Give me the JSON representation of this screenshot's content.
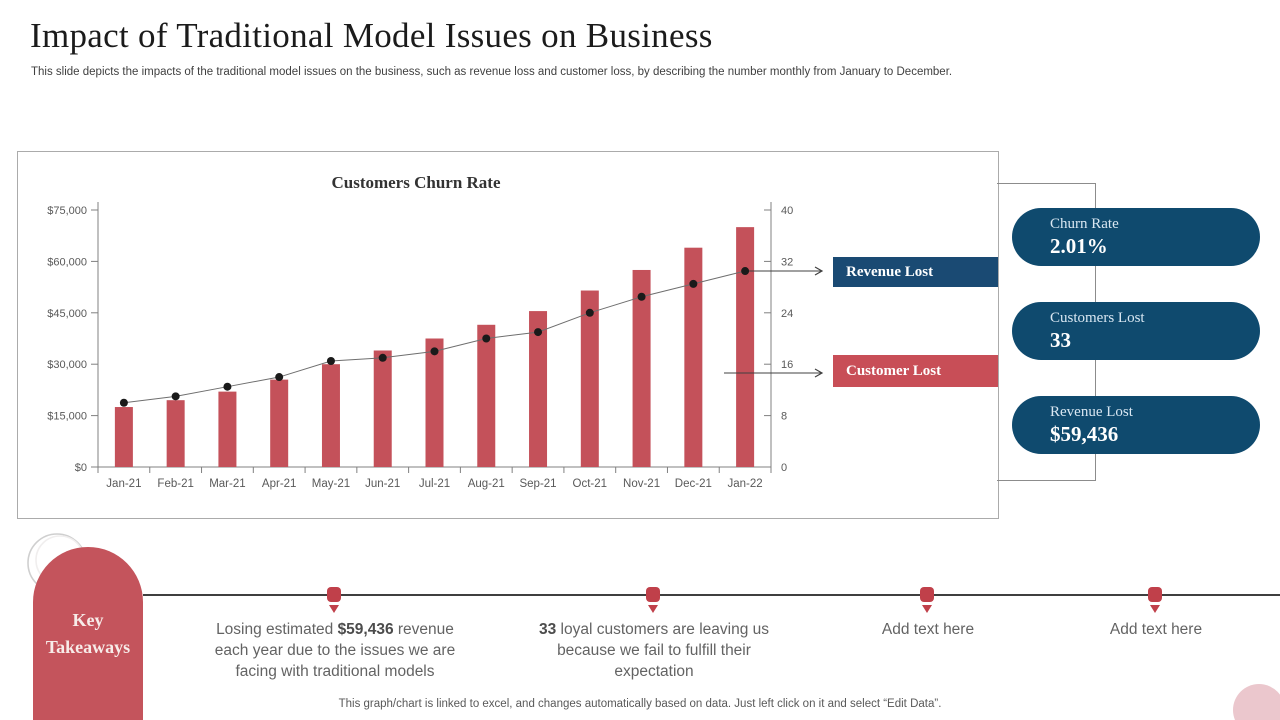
{
  "slide": {
    "title": "Impact of Traditional Model Issues on Business",
    "subtitle": "This slide depicts the impacts of the traditional model issues on the business, such as revenue loss and customer loss, by describing the number monthly from January to December.",
    "footer": "This graph/chart is linked to excel,  and changes automatically based on data. Just left click on it and select “Edit Data”."
  },
  "chart_data": {
    "type": "combo (bar + line)",
    "title": "Customers Churn Rate",
    "categories": [
      "Jan-21",
      "Feb-21",
      "Mar-21",
      "Apr-21",
      "May-21",
      "Jun-21",
      "Jul-21",
      "Aug-21",
      "Sep-21",
      "Oct-21",
      "Nov-21",
      "Dec-21",
      "Jan-22"
    ],
    "series": [
      {
        "name": "Revenue Lost",
        "type": "bar",
        "axis": "left",
        "values": [
          17500,
          19500,
          22000,
          25500,
          30000,
          34000,
          37500,
          41500,
          45500,
          51500,
          57500,
          64000,
          70000
        ]
      },
      {
        "name": "Customer Lost",
        "type": "line",
        "axis": "right",
        "values": [
          10,
          11,
          12.5,
          14,
          16.5,
          17,
          18,
          20,
          21,
          24,
          26.5,
          28.5,
          30.5
        ]
      }
    ],
    "left_axis": {
      "min": 0,
      "max": 75000,
      "step": 15000,
      "tick_labels": [
        "$0",
        "$15,000",
        "$30,000",
        "$45,000",
        "$60,000",
        "$75,000"
      ]
    },
    "right_axis": {
      "min": 0,
      "max": 40,
      "step": 8,
      "tick_labels": [
        "0",
        "8",
        "16",
        "24",
        "32",
        "40"
      ]
    },
    "legend": [
      {
        "label": "Revenue Lost",
        "color": "#1a4a73",
        "position": "right-callout"
      },
      {
        "label": "Customer Lost",
        "color": "#c84e57",
        "position": "right-callout"
      }
    ],
    "grid": false
  },
  "stat_pills": [
    {
      "label": "Churn Rate",
      "value": "2.01%"
    },
    {
      "label": "Customers Lost",
      "value": "33"
    },
    {
      "label": "Revenue Lost",
      "value": "$59,436"
    }
  ],
  "takeaways": {
    "heading": "Key Takeaways",
    "items": [
      {
        "prefix": "Losing estimated ",
        "bold": "$59,436",
        "suffix": " revenue each year due to the issues we are facing with traditional models"
      },
      {
        "prefix": "",
        "bold": "33",
        "suffix": " loyal customers are leaving us because we fail to fulfill their expectation"
      },
      {
        "prefix": "",
        "bold": "",
        "suffix": "Add text here"
      },
      {
        "prefix": "",
        "bold": "",
        "suffix": "Add text here"
      }
    ]
  },
  "colors": {
    "navy": "#0f4a6e",
    "legend_navy": "#1a4a73",
    "red": "#c4515a",
    "legend_red": "#c84e57",
    "marker_red": "#c0404a",
    "arch_red": "#c4545c",
    "pink": "#ebc7cd",
    "axis_gray": "#808080",
    "tick_text": "#595959",
    "line_gray": "#6e6e6e",
    "dot_black": "#1a1a1a"
  }
}
